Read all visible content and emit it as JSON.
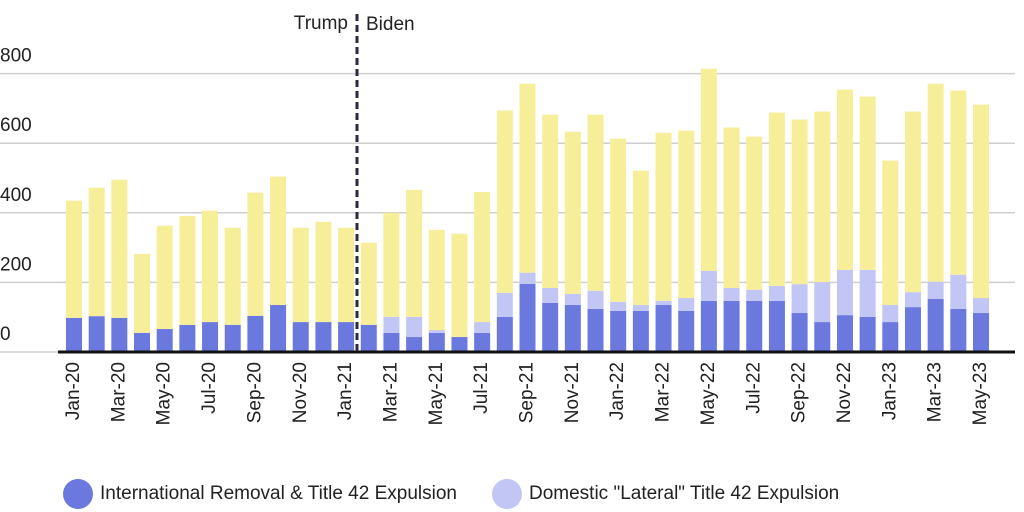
{
  "chart_data": {
    "type": "stacked_bar",
    "categories": [
      "Jan-20",
      null,
      "Mar-20",
      null,
      "May-20",
      null,
      "Jul-20",
      null,
      "Sep-20",
      null,
      "Nov-20",
      null,
      "Jan-21",
      null,
      "Mar-21",
      null,
      "May-21",
      null,
      "Jul-21",
      null,
      "Sep-21",
      null,
      "Nov-21",
      null,
      "Jan-22",
      null,
      "Mar-22",
      null,
      "May-22",
      null,
      "Jul-22",
      null,
      "Sep-22",
      null,
      "Nov-22",
      null,
      "Jan-23",
      null,
      "Mar-23",
      null,
      "May-23"
    ],
    "series": [
      {
        "name": "International Removal & Title 42 Expulsion",
        "color": "#6b78dd",
        "values": [
          98,
          103,
          98,
          55,
          66,
          78,
          86,
          78,
          104,
          135,
          86,
          86,
          86,
          78,
          55,
          43,
          55,
          43,
          55,
          101,
          196,
          141,
          135,
          124,
          118,
          118,
          135,
          118,
          147,
          147,
          147,
          147,
          112,
          86,
          106,
          101,
          86,
          129,
          153,
          124,
          112
        ]
      },
      {
        "name": "Domestic \"Lateral\" Title 42 Expulsion",
        "color": "#c2c6f5",
        "values": [
          0,
          0,
          0,
          0,
          0,
          0,
          0,
          0,
          0,
          0,
          0,
          0,
          0,
          0,
          46,
          58,
          8,
          0,
          31,
          69,
          32,
          43,
          32,
          52,
          26,
          17,
          12,
          37,
          86,
          37,
          32,
          43,
          83,
          115,
          130,
          135,
          49,
          43,
          49,
          98,
          43
        ]
      },
      {
        "color": "#f7ee9a",
        "values": [
          337,
          369,
          397,
          227,
          297,
          313,
          320,
          279,
          354,
          369,
          271,
          288,
          271,
          236,
          299,
          365,
          288,
          297,
          374,
          524,
          543,
          498,
          466,
          506,
          469,
          386,
          483,
          481,
          581,
          461,
          440,
          498,
          473,
          490,
          518,
          498,
          415,
          519,
          569,
          529,
          556
        ]
      }
    ],
    "ylim": [
      0,
      1000
    ],
    "yticks": [
      0,
      200,
      400,
      600,
      800
    ],
    "grid": true,
    "annotations": [
      "Trump",
      "Biden"
    ]
  }
}
